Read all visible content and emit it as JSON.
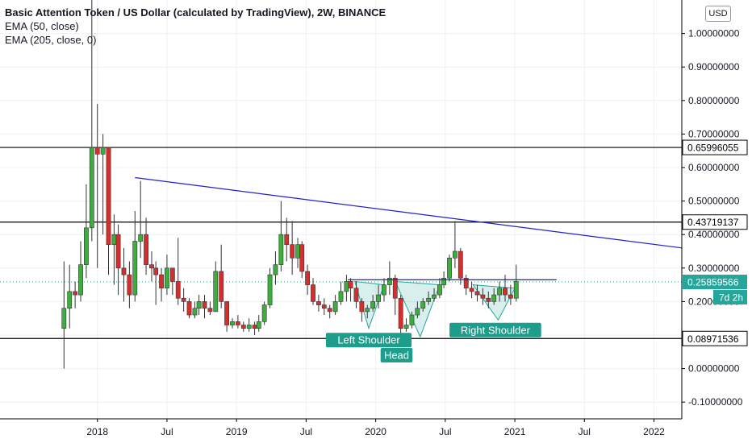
{
  "header": {
    "title": "Basic Attention Token / US Dollar (calculated by TradingView), 2W, BINANCE",
    "indicators": [
      "EMA (50, close)",
      "EMA (205, close, 0)"
    ],
    "currency_button": "USD"
  },
  "colors": {
    "up": "#26a69a",
    "up_fill": "#3cae3c",
    "down": "#ef5350",
    "down_fill": "#d32f2f",
    "trendline": "#1f1fd1",
    "neckline": "#1f1fd1",
    "pattern_fill": "#26a69a",
    "label_bg": "#1e9c8c",
    "current_price": "#26a69a"
  },
  "chart_data": {
    "type": "candlestick",
    "x_axis": {
      "ticks": [
        {
          "label": "2018",
          "t": 2018.0
        },
        {
          "label": "Jul",
          "t": 2018.5
        },
        {
          "label": "2019",
          "t": 2019.0
        },
        {
          "label": "Jul",
          "t": 2019.5
        },
        {
          "label": "2020",
          "t": 2020.0
        },
        {
          "label": "Jul",
          "t": 2020.5
        },
        {
          "label": "2021",
          "t": 2021.0
        },
        {
          "label": "Jul",
          "t": 2021.5
        },
        {
          "label": "2022",
          "t": 2022.0
        }
      ],
      "range": [
        2017.3,
        2022.2
      ]
    },
    "y_axis": {
      "ticks": [
        "1.00000000",
        "0.90000000",
        "0.80000000",
        "0.70000000",
        "0.60000000",
        "0.50000000",
        "0.40000000",
        "0.30000000",
        "0.20000000",
        "0.10000000",
        "0.00000000",
        "-0.10000000"
      ],
      "range": [
        -0.15,
        1.1
      ]
    },
    "grid": true,
    "horizontal_levels": [
      {
        "value": 0.65996055,
        "label": "0.65996055"
      },
      {
        "value": 0.43719137,
        "label": "0.43719137"
      },
      {
        "value": 0.08971536,
        "label": "0.08971536"
      }
    ],
    "current_price": {
      "value": 0.25859566,
      "label": "0.25859566",
      "countdown": "7d 2h"
    },
    "trendline": {
      "from": [
        2018.27,
        0.57
      ],
      "to": [
        2022.2,
        0.36
      ]
    },
    "neckline": {
      "from": [
        2019.8,
        0.265
      ],
      "to": [
        2021.3,
        0.265
      ]
    },
    "pattern": {
      "left_shoulder": [
        [
          2019.85,
          0.26
        ],
        [
          2019.95,
          0.12
        ],
        [
          2020.06,
          0.25
        ]
      ],
      "head": [
        [
          2020.14,
          0.26
        ],
        [
          2020.32,
          0.095
        ],
        [
          2020.46,
          0.25
        ]
      ],
      "right_shoulder": [
        [
          2020.7,
          0.25
        ],
        [
          2020.88,
          0.145
        ],
        [
          2021.0,
          0.24
        ]
      ]
    },
    "annotations": [
      {
        "text": "Left Shoulder",
        "x": 2019.95,
        "y": 0.085
      },
      {
        "text": "Head",
        "x": 2020.15,
        "y": 0.04
      },
      {
        "text": "Right Shoulder",
        "x": 2020.86,
        "y": 0.115
      }
    ],
    "candles": [
      [
        2017.76,
        0.12,
        0.18,
        0.0,
        0.32
      ],
      [
        2017.8,
        0.18,
        0.23,
        0.12,
        0.31
      ],
      [
        2017.84,
        0.23,
        0.22,
        0.18,
        0.26
      ],
      [
        2017.88,
        0.22,
        0.31,
        0.2,
        0.38
      ],
      [
        2017.92,
        0.31,
        0.42,
        0.27,
        0.55
      ],
      [
        2017.96,
        0.42,
        0.66,
        0.38,
        1.1
      ],
      [
        2018.0,
        0.66,
        0.64,
        0.3,
        0.79
      ],
      [
        2018.04,
        0.64,
        0.66,
        0.4,
        0.7
      ],
      [
        2018.08,
        0.66,
        0.37,
        0.28,
        0.66
      ],
      [
        2018.12,
        0.37,
        0.4,
        0.25,
        0.46
      ],
      [
        2018.15,
        0.4,
        0.3,
        0.22,
        0.43
      ],
      [
        2018.19,
        0.3,
        0.28,
        0.2,
        0.36
      ],
      [
        2018.23,
        0.28,
        0.22,
        0.18,
        0.32
      ],
      [
        2018.27,
        0.22,
        0.38,
        0.2,
        0.47
      ],
      [
        2018.31,
        0.38,
        0.4,
        0.33,
        0.56
      ],
      [
        2018.35,
        0.4,
        0.31,
        0.28,
        0.45
      ],
      [
        2018.39,
        0.31,
        0.3,
        0.26,
        0.35
      ],
      [
        2018.42,
        0.3,
        0.28,
        0.19,
        0.32
      ],
      [
        2018.46,
        0.28,
        0.24,
        0.2,
        0.3
      ],
      [
        2018.5,
        0.24,
        0.3,
        0.22,
        0.34
      ],
      [
        2018.54,
        0.3,
        0.26,
        0.22,
        0.3
      ],
      [
        2018.58,
        0.26,
        0.21,
        0.19,
        0.39
      ],
      [
        2018.62,
        0.21,
        0.2,
        0.17,
        0.24
      ],
      [
        2018.66,
        0.2,
        0.16,
        0.15,
        0.21
      ],
      [
        2018.7,
        0.16,
        0.18,
        0.15,
        0.2
      ],
      [
        2018.73,
        0.18,
        0.2,
        0.16,
        0.22
      ],
      [
        2018.77,
        0.2,
        0.18,
        0.15,
        0.22
      ],
      [
        2018.81,
        0.18,
        0.17,
        0.16,
        0.2
      ],
      [
        2018.85,
        0.17,
        0.29,
        0.17,
        0.32
      ],
      [
        2018.89,
        0.29,
        0.2,
        0.18,
        0.37
      ],
      [
        2018.93,
        0.2,
        0.13,
        0.11,
        0.2
      ],
      [
        2018.97,
        0.13,
        0.14,
        0.12,
        0.15
      ],
      [
        2019.01,
        0.14,
        0.13,
        0.12,
        0.16
      ],
      [
        2019.05,
        0.13,
        0.12,
        0.11,
        0.14
      ],
      [
        2019.09,
        0.12,
        0.13,
        0.11,
        0.15
      ],
      [
        2019.13,
        0.13,
        0.12,
        0.1,
        0.14
      ],
      [
        2019.16,
        0.12,
        0.14,
        0.11,
        0.16
      ],
      [
        2019.2,
        0.14,
        0.19,
        0.13,
        0.2
      ],
      [
        2019.24,
        0.19,
        0.28,
        0.18,
        0.3
      ],
      [
        2019.28,
        0.28,
        0.31,
        0.25,
        0.35
      ],
      [
        2019.32,
        0.31,
        0.4,
        0.29,
        0.5
      ],
      [
        2019.36,
        0.4,
        0.37,
        0.32,
        0.45
      ],
      [
        2019.4,
        0.37,
        0.33,
        0.28,
        0.44
      ],
      [
        2019.44,
        0.33,
        0.37,
        0.3,
        0.39
      ],
      [
        2019.47,
        0.37,
        0.29,
        0.27,
        0.38
      ],
      [
        2019.51,
        0.29,
        0.25,
        0.22,
        0.31
      ],
      [
        2019.55,
        0.25,
        0.2,
        0.19,
        0.27
      ],
      [
        2019.59,
        0.2,
        0.19,
        0.17,
        0.22
      ],
      [
        2019.63,
        0.19,
        0.18,
        0.16,
        0.21
      ],
      [
        2019.67,
        0.18,
        0.17,
        0.15,
        0.19
      ],
      [
        2019.71,
        0.17,
        0.2,
        0.16,
        0.22
      ],
      [
        2019.75,
        0.2,
        0.23,
        0.19,
        0.26
      ],
      [
        2019.79,
        0.23,
        0.26,
        0.2,
        0.28
      ],
      [
        2019.82,
        0.26,
        0.24,
        0.2,
        0.27
      ],
      [
        2019.86,
        0.24,
        0.2,
        0.18,
        0.26
      ],
      [
        2019.9,
        0.2,
        0.17,
        0.14,
        0.21
      ],
      [
        2019.94,
        0.17,
        0.18,
        0.15,
        0.19
      ],
      [
        2019.98,
        0.18,
        0.2,
        0.17,
        0.22
      ],
      [
        2020.02,
        0.2,
        0.22,
        0.18,
        0.25
      ],
      [
        2020.06,
        0.22,
        0.25,
        0.2,
        0.27
      ],
      [
        2020.1,
        0.25,
        0.27,
        0.22,
        0.32
      ],
      [
        2020.14,
        0.27,
        0.21,
        0.16,
        0.28
      ],
      [
        2020.18,
        0.21,
        0.12,
        0.1,
        0.22
      ],
      [
        2020.22,
        0.12,
        0.13,
        0.11,
        0.15
      ],
      [
        2020.26,
        0.13,
        0.16,
        0.12,
        0.17
      ],
      [
        2020.3,
        0.16,
        0.18,
        0.15,
        0.2
      ],
      [
        2020.34,
        0.18,
        0.2,
        0.17,
        0.21
      ],
      [
        2020.38,
        0.2,
        0.21,
        0.19,
        0.23
      ],
      [
        2020.42,
        0.21,
        0.22,
        0.2,
        0.24
      ],
      [
        2020.46,
        0.22,
        0.25,
        0.21,
        0.27
      ],
      [
        2020.49,
        0.25,
        0.27,
        0.24,
        0.29
      ],
      [
        2020.53,
        0.27,
        0.33,
        0.26,
        0.34
      ],
      [
        2020.57,
        0.33,
        0.35,
        0.3,
        0.44
      ],
      [
        2020.61,
        0.35,
        0.27,
        0.25,
        0.36
      ],
      [
        2020.65,
        0.27,
        0.24,
        0.22,
        0.28
      ],
      [
        2020.69,
        0.24,
        0.23,
        0.21,
        0.26
      ],
      [
        2020.73,
        0.23,
        0.22,
        0.2,
        0.25
      ],
      [
        2020.77,
        0.22,
        0.21,
        0.19,
        0.24
      ],
      [
        2020.81,
        0.21,
        0.2,
        0.18,
        0.23
      ],
      [
        2020.85,
        0.2,
        0.22,
        0.19,
        0.24
      ],
      [
        2020.89,
        0.22,
        0.24,
        0.2,
        0.26
      ],
      [
        2020.93,
        0.24,
        0.22,
        0.2,
        0.28
      ],
      [
        2020.97,
        0.22,
        0.21,
        0.19,
        0.25
      ],
      [
        2021.01,
        0.21,
        0.26,
        0.2,
        0.31
      ]
    ]
  }
}
